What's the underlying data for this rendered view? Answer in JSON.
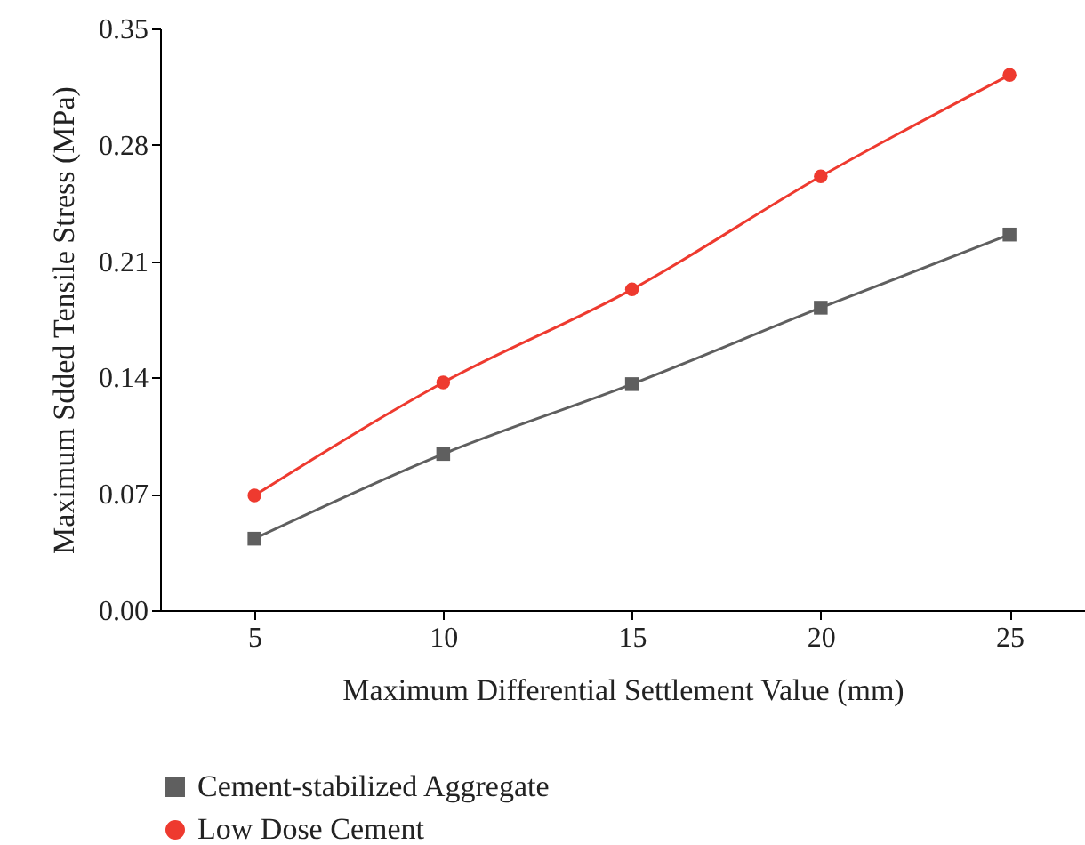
{
  "chart_data": {
    "type": "line",
    "xlabel": "Maximum Differential Settlement Value (mm)",
    "ylabel": "Maximum Sdded Tensile Stress (MPa)",
    "x": [
      5,
      10,
      15,
      20,
      25
    ],
    "series": [
      {
        "name": "Cement-stabilized Aggregate",
        "color": "#5f5f5f",
        "marker": "square",
        "values": [
          0.043,
          0.094,
          0.136,
          0.182,
          0.226
        ]
      },
      {
        "name": "Low Dose Cement",
        "color": "#ee3a2f",
        "marker": "circle",
        "values": [
          0.069,
          0.137,
          0.193,
          0.261,
          0.322
        ]
      }
    ],
    "xlim": [
      2.5,
      27
    ],
    "xticks": [
      5,
      10,
      15,
      20,
      25
    ],
    "ylim": [
      0,
      0.35
    ],
    "yticks": [
      {
        "value": 0,
        "label": "0.00"
      },
      0.07,
      0.14,
      0.21,
      0.28,
      0.35
    ],
    "grid": false,
    "legend": "bottom"
  }
}
